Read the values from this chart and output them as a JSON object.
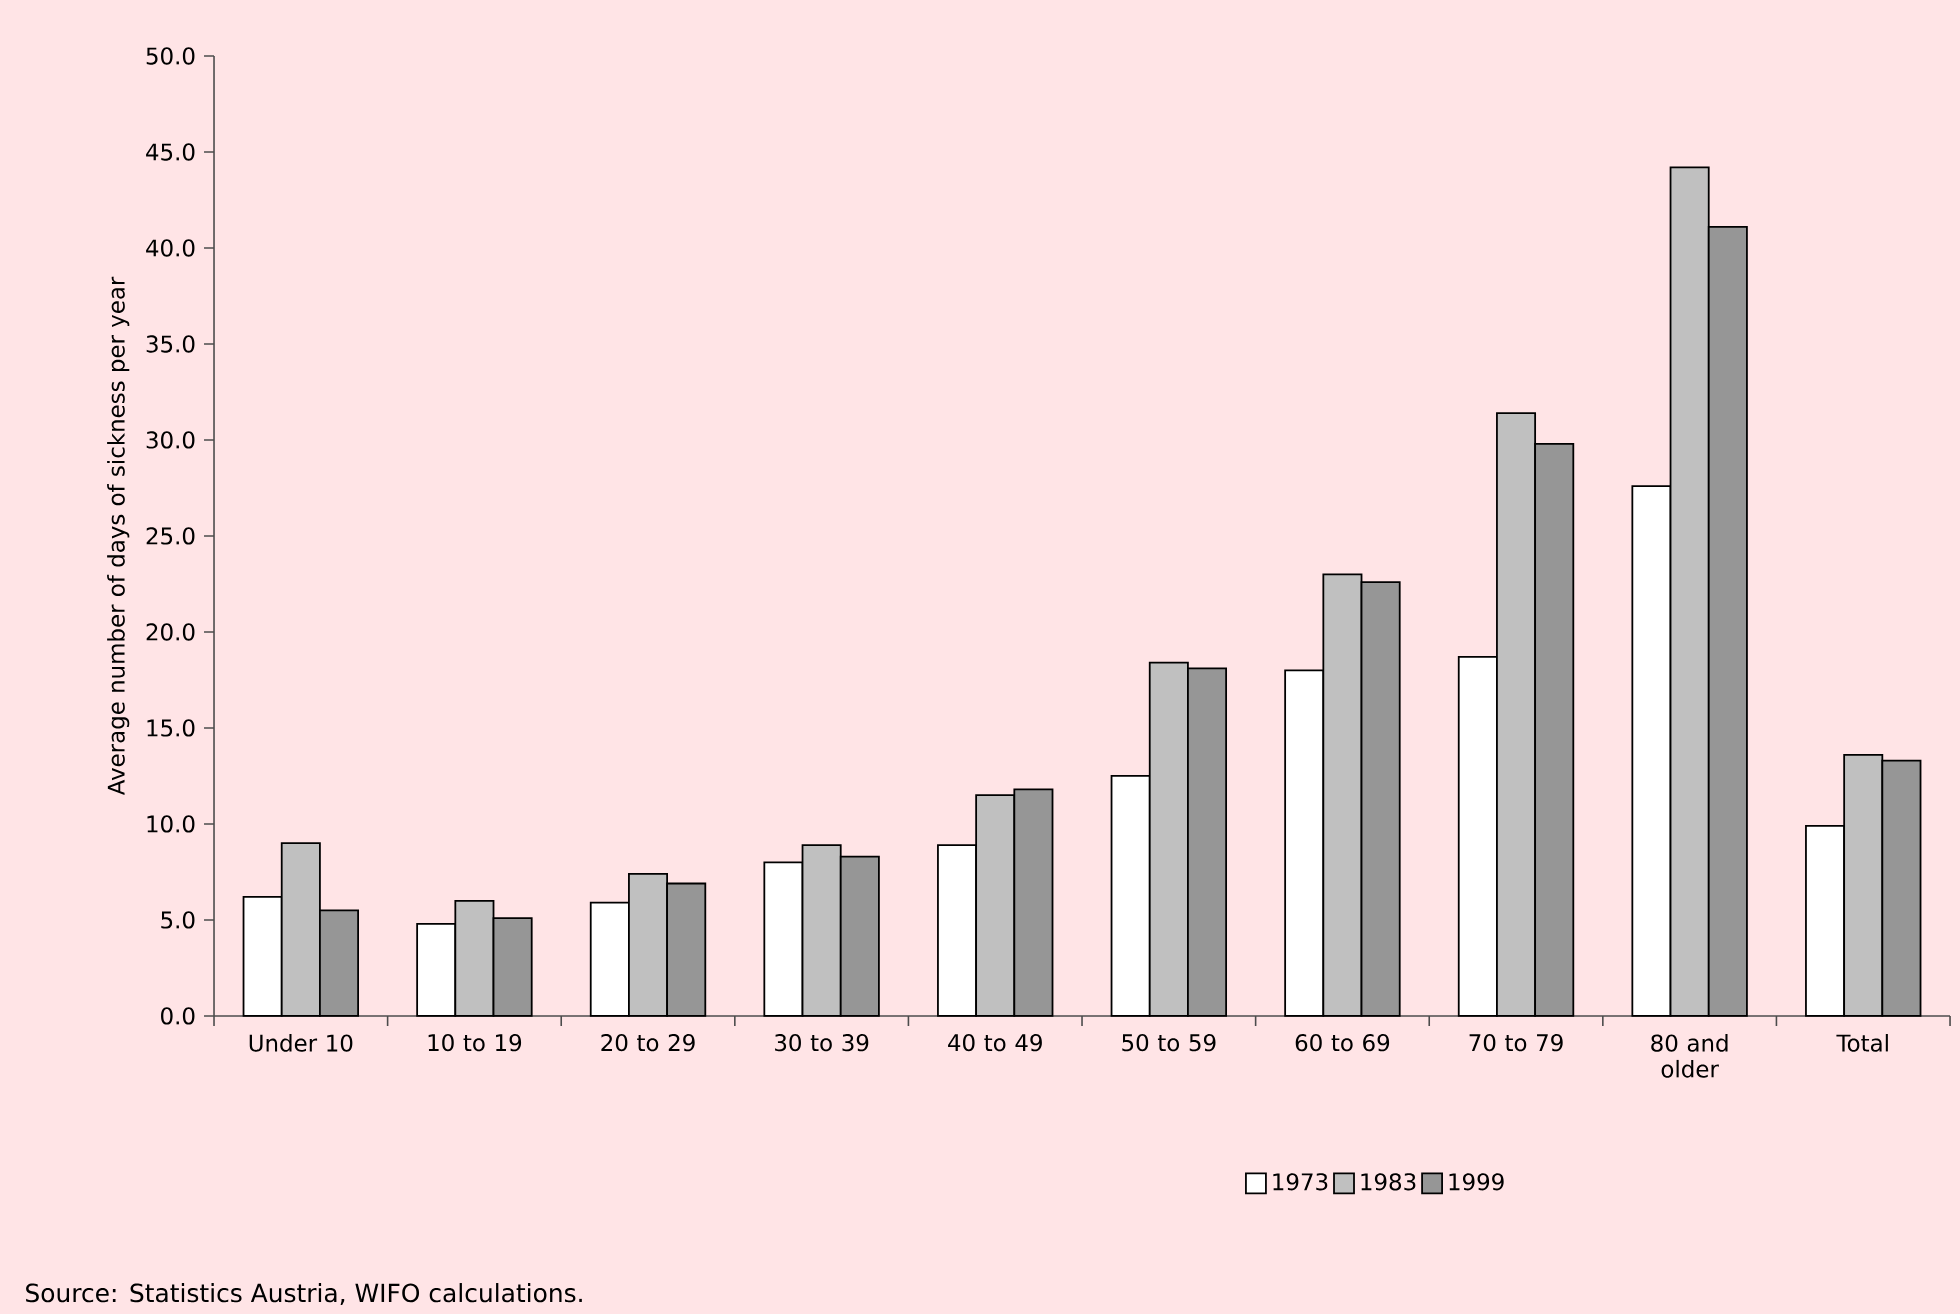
{
  "chart_data": {
    "type": "bar",
    "ylabel": "Average number of days of sickness per year",
    "categories": [
      "Under 10",
      "10 to 19",
      "20 to 29",
      "30 to 39",
      "40 to 49",
      "50 to 59",
      "60 to 69",
      "70 to 79",
      "80 and older",
      "Total"
    ],
    "series": [
      {
        "name": "1973",
        "color": "#ffffff",
        "values": [
          6.2,
          4.8,
          5.9,
          8.0,
          8.9,
          12.5,
          18.0,
          18.7,
          27.6,
          9.9
        ]
      },
      {
        "name": "1983",
        "color": "#c0c0c0",
        "values": [
          9.0,
          6.0,
          7.4,
          8.9,
          11.5,
          18.4,
          23.0,
          31.4,
          44.2,
          13.6
        ]
      },
      {
        "name": "1999",
        "color": "#969696",
        "values": [
          5.5,
          5.1,
          6.9,
          8.3,
          11.8,
          18.1,
          22.6,
          29.8,
          41.1,
          13.3
        ]
      }
    ],
    "ylim": [
      0,
      50
    ],
    "yticks": [
      {
        "value": 0,
        "label": "0.0"
      },
      {
        "value": 5,
        "label": "5.0"
      },
      {
        "value": 10,
        "label": "10.0"
      },
      {
        "value": 15,
        "label": "15.0"
      },
      {
        "value": 20,
        "label": "20.0"
      },
      {
        "value": 25,
        "label": "25.0"
      },
      {
        "value": 30,
        "label": "30.0"
      },
      {
        "value": 35,
        "label": "35.0"
      },
      {
        "value": 40,
        "label": "40.0"
      },
      {
        "value": 45,
        "label": "45.0"
      },
      {
        "value": 50,
        "label": "50.0"
      }
    ],
    "legend": "bottom",
    "annotations": [
      "Source: Statistics Austria, WIFO calculations."
    ]
  }
}
